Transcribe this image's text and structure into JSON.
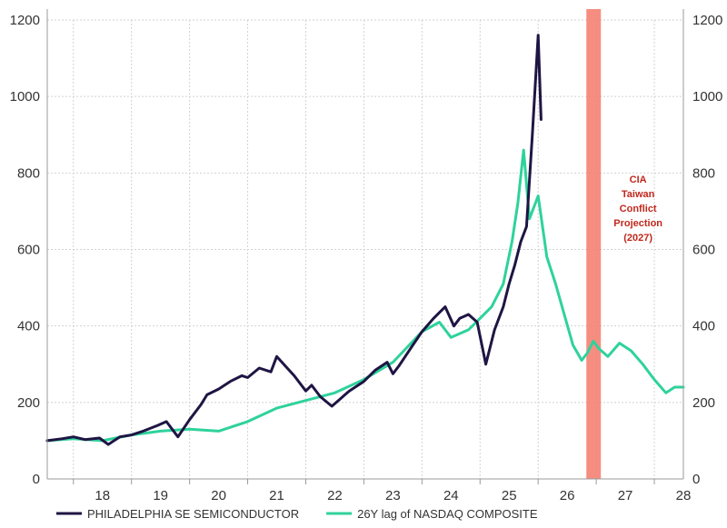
{
  "chart_data": {
    "type": "line",
    "x_axis": {
      "ticks": [
        "18",
        "19",
        "20",
        "21",
        "22",
        "23",
        "24",
        "25",
        "26",
        "27",
        "28"
      ],
      "range": [
        2017.55,
        2028.5
      ]
    },
    "y_axis_left": {
      "ticks": [
        "0",
        "200",
        "400",
        "600",
        "800",
        "1000",
        "1200"
      ],
      "range": [
        0,
        1200
      ]
    },
    "y_axis_right": {
      "ticks": [
        "0",
        "200",
        "400",
        "600",
        "800",
        "1000",
        "1200"
      ],
      "range": [
        0,
        1200
      ]
    },
    "grid": true,
    "legend_position": "bottom-left",
    "colors": {
      "sox": "#1f1544",
      "nasdaq": "#2fd29c",
      "band": "#f47e6e"
    },
    "series": [
      {
        "name": "PHILADELPHIA SE SEMICONDUCTOR",
        "key": "sox",
        "x": [
          2017.55,
          2017.8,
          2018.0,
          2018.2,
          2018.45,
          2018.6,
          2018.8,
          2019.0,
          2019.2,
          2019.45,
          2019.6,
          2019.8,
          2020.0,
          2020.2,
          2020.3,
          2020.5,
          2020.7,
          2020.9,
          2021.0,
          2021.2,
          2021.4,
          2021.5,
          2021.65,
          2021.8,
          2022.0,
          2022.1,
          2022.25,
          2022.45,
          2022.6,
          2022.75,
          2023.0,
          2023.2,
          2023.4,
          2023.5,
          2023.6,
          2023.8,
          2024.0,
          2024.2,
          2024.4,
          2024.55,
          2024.65,
          2024.8,
          2024.95,
          2025.1,
          2025.25,
          2025.4,
          2025.5,
          2025.6,
          2025.7,
          2025.8,
          2025.9,
          2026.0,
          2026.05
        ],
        "values": [
          100,
          105,
          110,
          103,
          107,
          90,
          110,
          115,
          125,
          140,
          150,
          110,
          155,
          195,
          220,
          235,
          255,
          270,
          265,
          290,
          280,
          320,
          295,
          270,
          230,
          245,
          215,
          190,
          210,
          230,
          255,
          285,
          305,
          275,
          295,
          340,
          385,
          420,
          450,
          400,
          420,
          430,
          410,
          300,
          390,
          450,
          510,
          560,
          620,
          660,
          900,
          1160,
          940
        ]
      },
      {
        "name": "26Y lag of NASDAQ COMPOSITE",
        "key": "nasdaq",
        "x": [
          2017.55,
          2018.0,
          2018.5,
          2019.0,
          2019.5,
          2020.0,
          2020.5,
          2021.0,
          2021.5,
          2022.0,
          2022.5,
          2023.0,
          2023.5,
          2024.0,
          2024.3,
          2024.5,
          2024.8,
          2025.0,
          2025.2,
          2025.4,
          2025.55,
          2025.65,
          2025.75,
          2025.85,
          2026.0,
          2026.15,
          2026.3,
          2026.45,
          2026.6,
          2026.75,
          2026.85,
          2026.95,
          2027.05,
          2027.2,
          2027.4,
          2027.6,
          2027.8,
          2028.0,
          2028.2,
          2028.35,
          2028.5
        ],
        "values": [
          100,
          105,
          100,
          115,
          125,
          130,
          125,
          150,
          185,
          205,
          225,
          260,
          305,
          385,
          410,
          370,
          390,
          420,
          450,
          510,
          620,
          720,
          860,
          680,
          740,
          580,
          510,
          430,
          350,
          310,
          330,
          360,
          340,
          320,
          355,
          335,
          300,
          260,
          225,
          240,
          240
        ]
      }
    ],
    "annotations": [
      {
        "text": [
          "CIA",
          "Taiwan",
          "Conflict",
          "Projection",
          "(2027)"
        ],
        "shaded_range": [
          2026.83,
          2027.08
        ]
      }
    ]
  }
}
